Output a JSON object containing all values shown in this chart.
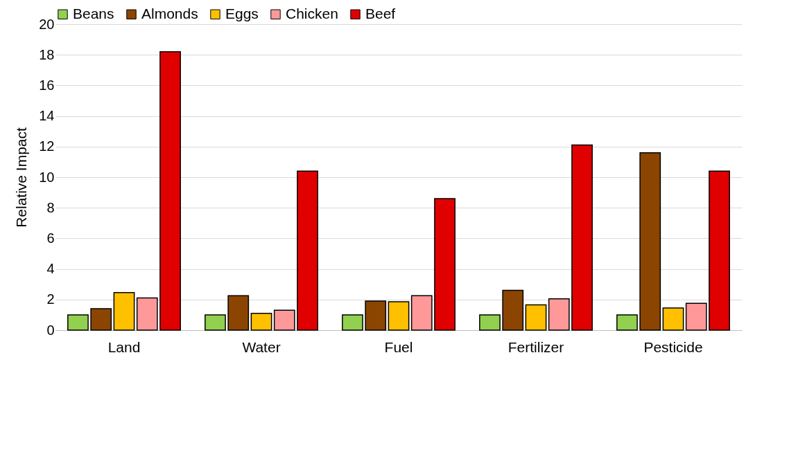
{
  "chart_data": {
    "type": "bar",
    "ylabel": "Relative Impact",
    "categories": [
      "Land",
      "Water",
      "Fuel",
      "Fertilizer",
      "Pesticide"
    ],
    "series": [
      {
        "name": "Beans",
        "color": "#92d050",
        "values": [
          1,
          1,
          1,
          1,
          1
        ]
      },
      {
        "name": "Almonds",
        "color": "#8b4500",
        "values": [
          1.4,
          2.25,
          1.9,
          2.6,
          11.6
        ]
      },
      {
        "name": "Eggs",
        "color": "#ffc000",
        "values": [
          2.45,
          1.1,
          1.85,
          1.65,
          1.45
        ]
      },
      {
        "name": "Chicken",
        "color": "#ff9999",
        "values": [
          2.1,
          1.3,
          2.25,
          2.05,
          1.75
        ]
      },
      {
        "name": "Beef",
        "color": "#e00000",
        "values": [
          18.2,
          10.4,
          8.6,
          12.1,
          10.4
        ]
      }
    ],
    "ylim": [
      0,
      20
    ],
    "yticks": [
      0,
      2,
      4,
      6,
      8,
      10,
      12,
      14,
      16,
      18,
      20
    ],
    "grid": "y",
    "legend": "top"
  }
}
